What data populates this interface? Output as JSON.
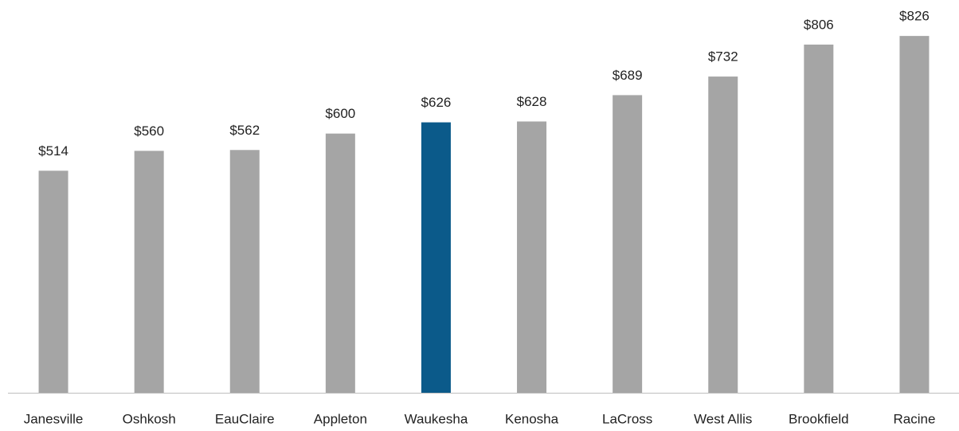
{
  "chart_data": {
    "type": "bar",
    "categories": [
      "Janesville",
      "Oshkosh",
      "EauClaire",
      "Appleton",
      "Waukesha",
      "Kenosha",
      "LaCross",
      "West Allis",
      "Brookfield",
      "Racine"
    ],
    "values": [
      514,
      560,
      562,
      600,
      626,
      628,
      689,
      732,
      806,
      826
    ],
    "value_labels": [
      "$514",
      "$560",
      "$562",
      "$600",
      "$626",
      "$628",
      "$689",
      "$732",
      "$806",
      "$826"
    ],
    "colors": [
      "#a5a5a5",
      "#a5a5a5",
      "#a5a5a5",
      "#a5a5a5",
      "#0b5a8a",
      "#a5a5a5",
      "#a5a5a5",
      "#a5a5a5",
      "#a5a5a5",
      "#a5a5a5"
    ],
    "ylim": [
      0,
      900
    ]
  }
}
